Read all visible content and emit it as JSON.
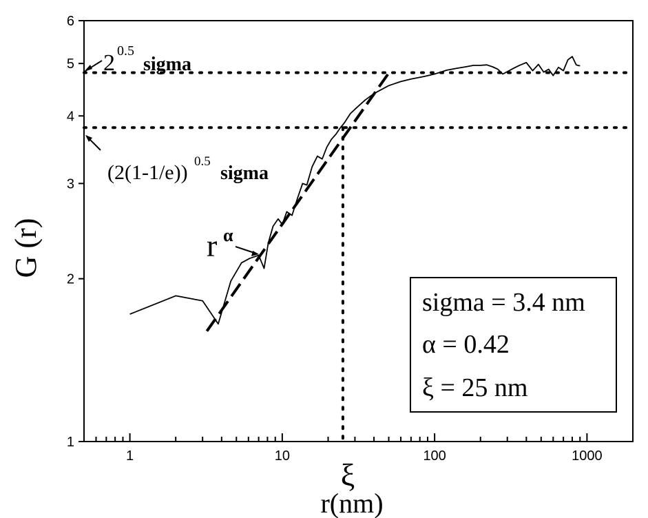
{
  "chart_data": {
    "type": "line",
    "xlabel": "r(nm)",
    "ylabel": "G (r)",
    "x_scale": "log",
    "y_scale": "log",
    "xlim": [
      0.5,
      2000
    ],
    "ylim": [
      1,
      6
    ],
    "x_ticks": [
      1,
      10,
      100,
      1000
    ],
    "x_tick_labels": [
      "1",
      "10",
      "100",
      "1000"
    ],
    "y_ticks": [
      1,
      2,
      3,
      4,
      5,
      6
    ],
    "y_tick_labels": [
      "1",
      "2",
      "3",
      "4",
      "5",
      "6"
    ],
    "grid": false,
    "series": [
      {
        "style": "solid",
        "x": [
          1,
          2,
          3,
          3.8,
          4.6,
          5.4,
          6.1,
          7,
          7.6,
          8.1,
          8.7,
          9.4,
          10,
          10.7,
          11.6,
          12.6,
          13.6,
          14.5,
          15.7,
          17,
          18.3,
          19.6,
          21,
          22.5,
          24,
          25.5,
          28,
          31,
          35,
          40,
          50,
          60,
          70,
          85,
          100,
          120,
          140,
          160,
          180,
          200,
          220,
          240,
          260,
          280,
          300,
          330,
          360,
          400,
          440,
          480,
          520,
          560,
          600,
          650,
          700,
          750,
          800,
          850,
          900
        ],
        "y": [
          1.72,
          1.86,
          1.82,
          1.65,
          1.98,
          2.14,
          2.18,
          2.21,
          2.09,
          2.33,
          2.5,
          2.58,
          2.52,
          2.66,
          2.62,
          2.82,
          3.0,
          2.98,
          3.22,
          3.37,
          3.33,
          3.5,
          3.62,
          3.7,
          3.8,
          3.88,
          4.04,
          4.15,
          4.28,
          4.4,
          4.55,
          4.63,
          4.68,
          4.73,
          4.78,
          4.86,
          4.9,
          4.93,
          4.96,
          4.96,
          4.97,
          4.93,
          4.88,
          4.78,
          4.83,
          4.9,
          4.96,
          5.02,
          4.85,
          4.98,
          4.82,
          4.88,
          4.75,
          4.92,
          4.85,
          5.08,
          5.15,
          4.97,
          4.95
        ]
      },
      {
        "name": "r^α",
        "style": "dashed",
        "x": [
          3.2,
          50
        ],
        "y": [
          1.6,
          4.8
        ]
      }
    ],
    "reference_lines": [
      {
        "type": "horizontal",
        "y": 4.808,
        "style": "dotted",
        "label": "2^0.5 sigma"
      },
      {
        "type": "horizontal",
        "y": 3.806,
        "style": "dotted",
        "label": "(2(1-1/e))^0.5 sigma"
      },
      {
        "type": "vertical",
        "x": 25,
        "style": "dotted",
        "label": "ξ"
      }
    ],
    "annotations": {
      "sigma_upper": {
        "base": "2",
        "exponent": "0.5",
        "text": "sigma"
      },
      "sigma_lower": {
        "base": "(2(1-1/e))",
        "exponent": "0.5",
        "text": "sigma"
      },
      "power_law": {
        "base": "r",
        "exponent": "α"
      },
      "xi_label": "ξ"
    },
    "info_box": {
      "lines": [
        "sigma = 3.4 nm",
        "α = 0.42",
        "ξ = 25 nm"
      ],
      "placement": "bottom-right"
    }
  }
}
